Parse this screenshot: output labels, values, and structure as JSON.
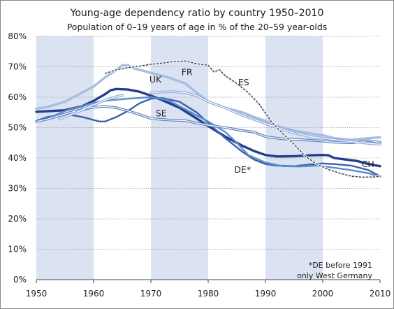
{
  "chart_data": {
    "type": "line",
    "title": "Young-age dependency ratio by country 1950–2010",
    "subtitle": "Population of 0–19 years of age in % of the 20–59 year-olds",
    "xlim": [
      1950,
      2010
    ],
    "ylim": [
      0,
      80
    ],
    "x_ticks": [
      "1950",
      "1960",
      "1970",
      "1980",
      "1990",
      "2000",
      "2010"
    ],
    "y_ticks": [
      "0%",
      "10%",
      "20%",
      "30%",
      "40%",
      "50%",
      "60%",
      "70%",
      "80%"
    ],
    "shaded_decades": [
      [
        1950,
        1960
      ],
      [
        1970,
        1980
      ],
      [
        1990,
        2000
      ]
    ],
    "grid": true,
    "note_lines": [
      "*DE before 1991",
      "only West Germany"
    ],
    "series": [
      {
        "name": "CH",
        "color": "#223f8a",
        "style": "thick",
        "points": [
          [
            1950,
            55.2
          ],
          [
            1955,
            55.7
          ],
          [
            1958,
            57
          ],
          [
            1960,
            58.8
          ],
          [
            1962,
            61
          ],
          [
            1963,
            62.3
          ],
          [
            1964,
            62.7
          ],
          [
            1966,
            62.5
          ],
          [
            1968,
            61.8
          ],
          [
            1970,
            60.5
          ],
          [
            1972,
            59
          ],
          [
            1975,
            56.5
          ],
          [
            1978,
            53
          ],
          [
            1980,
            50.5
          ],
          [
            1983,
            47
          ],
          [
            1986,
            44
          ],
          [
            1988,
            42.3
          ],
          [
            1990,
            41
          ],
          [
            1992,
            40.5
          ],
          [
            1995,
            40.6
          ],
          [
            1998,
            40.9
          ],
          [
            2000,
            41
          ],
          [
            2001,
            40.9
          ],
          [
            2002,
            40
          ],
          [
            2004,
            39.5
          ],
          [
            2006,
            39
          ],
          [
            2008,
            38
          ],
          [
            2010,
            37.3
          ]
        ]
      },
      {
        "name": "UK",
        "color": "#3a63ad",
        "style": "medium",
        "points": [
          [
            1950,
            52.2
          ],
          [
            1952,
            53.5
          ],
          [
            1955,
            54.5
          ],
          [
            1958,
            53.5
          ],
          [
            1960,
            52.5
          ],
          [
            1961,
            52
          ],
          [
            1962,
            52
          ],
          [
            1964,
            53.5
          ],
          [
            1966,
            55.5
          ],
          [
            1968,
            58
          ],
          [
            1970,
            59.5
          ],
          [
            1972,
            59.7
          ],
          [
            1975,
            58.5
          ],
          [
            1978,
            55
          ],
          [
            1980,
            51.5
          ],
          [
            1983,
            46.5
          ],
          [
            1986,
            42
          ],
          [
            1988,
            39.5
          ],
          [
            1990,
            38
          ],
          [
            1992,
            37.5
          ],
          [
            1995,
            37.3
          ],
          [
            1998,
            37.9
          ],
          [
            2000,
            38.2
          ],
          [
            2002,
            38
          ],
          [
            2005,
            37.5
          ],
          [
            2008,
            36
          ],
          [
            2010,
            34
          ]
        ]
      },
      {
        "name": "DE*",
        "color": "#5f8bcb",
        "style": "medium",
        "points": [
          [
            1952,
            53
          ],
          [
            1955,
            55.5
          ],
          [
            1958,
            57
          ],
          [
            1960,
            58.2
          ],
          [
            1963,
            59
          ],
          [
            1966,
            59.5
          ],
          [
            1970,
            60
          ],
          [
            1973,
            59
          ],
          [
            1976,
            56
          ],
          [
            1978,
            54
          ],
          [
            1980,
            52
          ],
          [
            1983,
            48.5
          ],
          [
            1985,
            45
          ],
          [
            1987,
            41
          ],
          [
            1990,
            38.5
          ],
          [
            1993,
            37.3
          ],
          [
            1996,
            37.2
          ],
          [
            1999,
            37.5
          ],
          [
            2002,
            36.8
          ],
          [
            2005,
            36
          ],
          [
            2008,
            35
          ],
          [
            2010,
            33.8
          ]
        ]
      },
      {
        "name": "FR",
        "color": "#a7bde2",
        "style": "thick",
        "points": [
          [
            1950,
            56.2
          ],
          [
            1952,
            56.8
          ],
          [
            1955,
            58.5
          ],
          [
            1958,
            61.5
          ],
          [
            1960,
            63.5
          ],
          [
            1962,
            66.5
          ],
          [
            1964,
            69
          ],
          [
            1965,
            70.5
          ],
          [
            1966,
            70.5
          ],
          [
            1967,
            69.5
          ],
          [
            1970,
            68
          ],
          [
            1973,
            66.5
          ],
          [
            1976,
            64.5
          ],
          [
            1978,
            61.5
          ],
          [
            1980,
            58.5
          ],
          [
            1983,
            56.5
          ],
          [
            1986,
            55
          ],
          [
            1988,
            53.5
          ],
          [
            1990,
            52.2
          ],
          [
            1992,
            50.5
          ],
          [
            1995,
            49
          ],
          [
            1998,
            48
          ],
          [
            2000,
            47.5
          ],
          [
            2002,
            46.5
          ],
          [
            2005,
            46
          ],
          [
            2008,
            46.5
          ],
          [
            2010,
            46.8
          ]
        ]
      },
      {
        "name": "SE",
        "color": "#5b7fbf",
        "style": "double",
        "points": [
          [
            1950,
            52
          ],
          [
            1952,
            52.8
          ],
          [
            1955,
            54.5
          ],
          [
            1957,
            55.5
          ],
          [
            1960,
            56.7
          ],
          [
            1962,
            57
          ],
          [
            1964,
            56.5
          ],
          [
            1966,
            55.5
          ],
          [
            1968,
            54.3
          ],
          [
            1970,
            53
          ],
          [
            1973,
            52.5
          ],
          [
            1976,
            52.3
          ],
          [
            1978,
            51.5
          ],
          [
            1980,
            50.8
          ],
          [
            1983,
            50
          ],
          [
            1986,
            49
          ],
          [
            1988,
            48.5
          ],
          [
            1990,
            47
          ],
          [
            1993,
            46.3
          ],
          [
            1996,
            46
          ],
          [
            1999,
            45.7
          ],
          [
            2002,
            45.2
          ],
          [
            2005,
            45
          ],
          [
            2008,
            45.7
          ],
          [
            2010,
            45.2
          ]
        ]
      },
      {
        "name": "",
        "color": "#8faad8",
        "style": "double",
        "points": [
          [
            1954,
            52.8
          ],
          [
            1957,
            55
          ],
          [
            1960,
            57.5
          ],
          [
            1962,
            59
          ],
          [
            1964,
            60.2
          ],
          [
            1965,
            60.6
          ]
        ]
      },
      {
        "name": "",
        "color": "#8faad8",
        "style": "double",
        "points": [
          [
            1970,
            61.5
          ],
          [
            1972,
            61.7
          ],
          [
            1974,
            61.8
          ],
          [
            1976,
            61.5
          ],
          [
            1978,
            60.5
          ],
          [
            1980,
            58.5
          ],
          [
            1983,
            56.5
          ],
          [
            1986,
            54
          ],
          [
            1989,
            52
          ],
          [
            1992,
            50
          ],
          [
            1995,
            48.2
          ],
          [
            1998,
            47
          ],
          [
            2000,
            46.5
          ],
          [
            2003,
            45.8
          ],
          [
            2006,
            45.2
          ],
          [
            2008,
            44.8
          ],
          [
            2010,
            44.5
          ]
        ]
      },
      {
        "name": "ES",
        "color": "#222222",
        "style": "dashed",
        "points": [
          [
            1962,
            67.8
          ],
          [
            1964,
            69
          ],
          [
            1966,
            69.7
          ],
          [
            1968,
            70.2
          ],
          [
            1970,
            70.8
          ],
          [
            1972,
            71.2
          ],
          [
            1974,
            71.7
          ],
          [
            1976,
            71.9
          ],
          [
            1978,
            71
          ],
          [
            1980,
            70.5
          ],
          [
            1981,
            68.3
          ],
          [
            1982,
            69
          ],
          [
            1983,
            67
          ],
          [
            1985,
            64.5
          ],
          [
            1987,
            61.5
          ],
          [
            1989,
            57.5
          ],
          [
            1991,
            52
          ],
          [
            1993,
            48
          ],
          [
            1995,
            44.5
          ],
          [
            1997,
            40.5
          ],
          [
            1999,
            38
          ],
          [
            2001,
            36.2
          ],
          [
            2003,
            35
          ],
          [
            2005,
            34
          ],
          [
            2007,
            33.7
          ],
          [
            2009,
            33.8
          ],
          [
            2010,
            34
          ]
        ]
      }
    ],
    "series_labels": [
      {
        "text": "UK",
        "x": 1970.8,
        "y": 64.8
      },
      {
        "text": "FR",
        "x": 1976.3,
        "y": 67.2
      },
      {
        "text": "ES",
        "x": 1986.2,
        "y": 63.9
      },
      {
        "text": "SE",
        "x": 1971.8,
        "y": 53.7
      },
      {
        "text": "DE*",
        "x": 1986.0,
        "y": 35.2
      },
      {
        "text": "CH",
        "x": 2007.9,
        "y": 37.0
      }
    ]
  }
}
